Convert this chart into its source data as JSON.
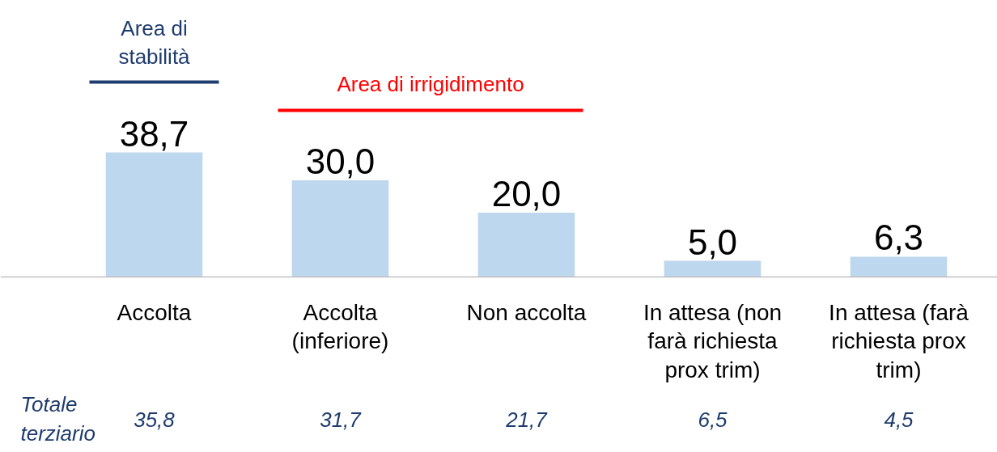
{
  "chart_data": {
    "type": "bar",
    "categories": [
      "Accolta",
      "Accolta (inferiore)",
      "Non accolta",
      "In attesa (non farà richiesta prox trim)",
      "In attesa (farà richiesta prox trim)"
    ],
    "values": [
      38.7,
      30.0,
      20.0,
      5.0,
      6.3
    ],
    "value_labels": [
      "38,7",
      "30,0",
      "20,0",
      "5,0",
      "6,3"
    ],
    "color": "#bdd7ee",
    "relative": false,
    "grid": false,
    "annotations": [
      "Area di stabilità",
      "Area di irrigidimento",
      "Totale terziario",
      "35,8",
      "31,7",
      "21,7",
      "6,5",
      "4,5"
    ]
  }
}
